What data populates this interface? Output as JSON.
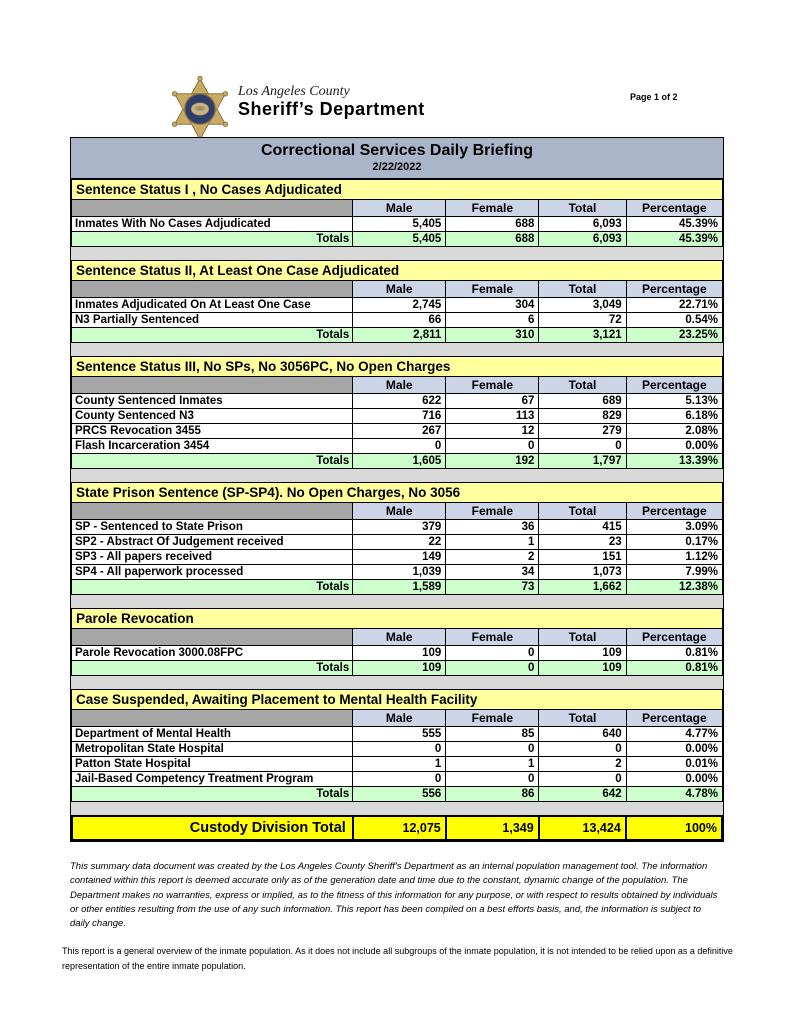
{
  "page_header": {
    "county": "Los Angeles County",
    "department": "Sheriff’s Department",
    "page_label": "Page 1 of 2"
  },
  "title_bar": {
    "title": "Correctional Services Daily Briefing",
    "date": "2/22/2022"
  },
  "table": {
    "columns": [
      "Male",
      "Female",
      "Total",
      "Percentage"
    ],
    "sections": [
      {
        "title": "Sentence Status I , No Cases Adjudicated",
        "rows": [
          [
            "Inmates With No Cases Adjudicated",
            "5,405",
            "688",
            "6,093",
            "45.39%"
          ]
        ],
        "totals": [
          "Totals",
          "5,405",
          "688",
          "6,093",
          "45.39%"
        ]
      },
      {
        "title": "Sentence Status II, At Least One Case Adjudicated",
        "rows": [
          [
            "Inmates Adjudicated On At Least One Case",
            "2,745",
            "304",
            "3,049",
            "22.71%"
          ],
          [
            "N3 Partially Sentenced",
            "66",
            "6",
            "72",
            "0.54%"
          ]
        ],
        "totals": [
          "Totals",
          "2,811",
          "310",
          "3,121",
          "23.25%"
        ]
      },
      {
        "title": "Sentence Status III, No SPs, No 3056PC, No Open Charges",
        "rows": [
          [
            "County Sentenced Inmates",
            "622",
            "67",
            "689",
            "5.13%"
          ],
          [
            "County Sentenced N3",
            "716",
            "113",
            "829",
            "6.18%"
          ],
          [
            "PRCS Revocation 3455",
            "267",
            "12",
            "279",
            "2.08%"
          ],
          [
            "Flash Incarceration 3454",
            "0",
            "0",
            "0",
            "0.00%"
          ]
        ],
        "totals": [
          "Totals",
          "1,605",
          "192",
          "1,797",
          "13.39%"
        ]
      },
      {
        "title": "State Prison Sentence (SP-SP4). No Open Charges, No 3056",
        "rows": [
          [
            "SP - Sentenced to State Prison",
            "379",
            "36",
            "415",
            "3.09%"
          ],
          [
            "SP2 - Abstract Of Judgement received",
            "22",
            "1",
            "23",
            "0.17%"
          ],
          [
            "SP3 - All papers received",
            "149",
            "2",
            "151",
            "1.12%"
          ],
          [
            "SP4 - All paperwork processed",
            "1,039",
            "34",
            "1,073",
            "7.99%"
          ]
        ],
        "totals": [
          "Totals",
          "1,589",
          "73",
          "1,662",
          "12.38%"
        ]
      },
      {
        "title": "Parole Revocation",
        "rows": [
          [
            "Parole Revocation 3000.08FPC",
            "109",
            "0",
            "109",
            "0.81%"
          ]
        ],
        "totals": [
          "Totals",
          "109",
          "0",
          "109",
          "0.81%"
        ]
      },
      {
        "title": "Case Suspended, Awaiting Placement to Mental Health Facility",
        "rows": [
          [
            "Department of Mental Health",
            "555",
            "85",
            "640",
            "4.77%"
          ],
          [
            "Metropolitan State Hospital",
            "0",
            "0",
            "0",
            "0.00%"
          ],
          [
            "Patton State Hospital",
            "1",
            "1",
            "2",
            "0.01%"
          ],
          [
            "Jail-Based Competency Treatment Program",
            "0",
            "0",
            "0",
            "0.00%"
          ]
        ],
        "totals": [
          "Totals",
          "556",
          "86",
          "642",
          "4.78%"
        ]
      }
    ],
    "grand_total": [
      "Custody Division Total",
      "12,075",
      "1,349",
      "13,424",
      "100%"
    ]
  },
  "footnotes": {
    "disclaimer": "This summary data document was created by the Los Angeles County Sheriff's Department as an internal population management tool.  The information contained within this report is deemed accurate only as of the generation date and time due to the constant, dynamic change of the population.  The Department makes no warranties, express or implied, as to the fitness of this information for any purpose, or with respect to results obtained by individuals or other entities resulting from the use of any such information.  This report has been compiled on a best efforts basis, and, the information is subject to daily change.",
    "overview": "This report is a general overview of the inmate population.  As it does not include all subgroups of the inmate population, it is not intended to be relied upon as a definitive representation of the entire inmate population."
  },
  "colors": {
    "title_bar": "#abb5c9",
    "section_header": "#ffff9e",
    "column_header": "#ccd4e8",
    "spacer_gray": "#a6a6a6",
    "totals_row": "#ccffcc",
    "grand_total_row": "#ffff00",
    "badge_gold": "#c9ab66",
    "badge_navy": "#2e3d6e"
  }
}
